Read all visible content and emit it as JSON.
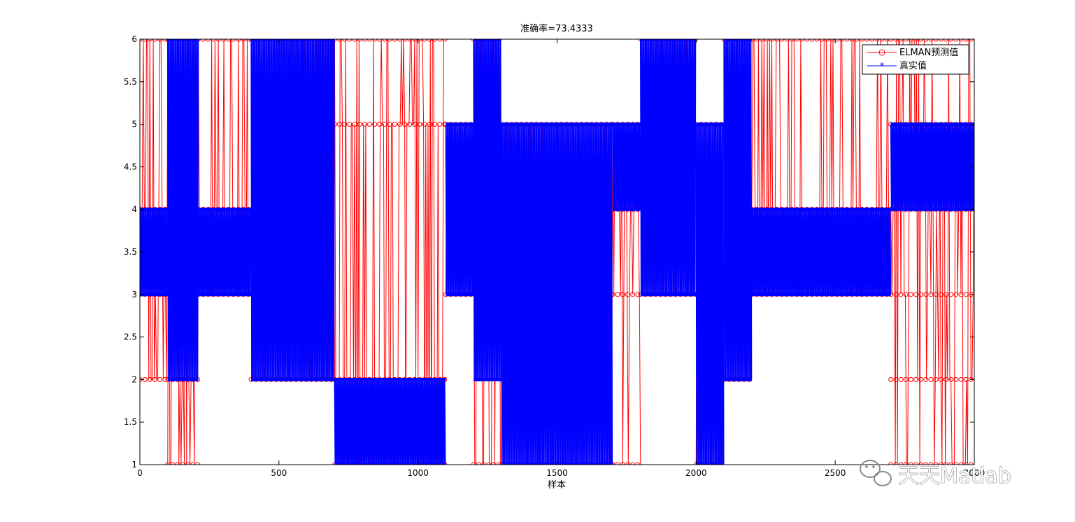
{
  "chart_data": {
    "type": "line",
    "title": "准确率=73.4333",
    "xlabel": "样本",
    "ylabel": "",
    "xlim": [
      0,
      3000
    ],
    "ylim": [
      1,
      6
    ],
    "x_ticks": [
      "0",
      "500",
      "1000",
      "1500",
      "2000",
      "2500",
      "3000"
    ],
    "y_ticks": [
      "1",
      "1.5",
      "2",
      "2.5",
      "3",
      "3.5",
      "4",
      "4.5",
      "5",
      "5.5",
      "6"
    ],
    "grid": false,
    "legend_position": "top-right",
    "series": [
      {
        "name": "ELMAN预测值",
        "color": "#ff0000",
        "marker": "circle",
        "segments": [
          {
            "x": [
              0,
              100
            ],
            "levels": [
              2,
              3,
              4,
              6
            ]
          },
          {
            "x": [
              100,
              210
            ],
            "levels": [
              1,
              2,
              6
            ]
          },
          {
            "x": [
              210,
              400
            ],
            "levels": [
              3,
              4,
              6
            ]
          },
          {
            "x": [
              400,
              700
            ],
            "levels": [
              2,
              6
            ]
          },
          {
            "x": [
              700,
              1100
            ],
            "levels": [
              1,
              2,
              5,
              6
            ]
          },
          {
            "x": [
              1100,
              1200
            ],
            "levels": [
              3,
              5
            ]
          },
          {
            "x": [
              1200,
              1300
            ],
            "levels": [
              1,
              4,
              6
            ]
          },
          {
            "x": [
              1300,
              1700
            ],
            "levels": [
              1,
              3,
              4,
              5
            ]
          },
          {
            "x": [
              1700,
              1800
            ],
            "levels": [
              1,
              3,
              4,
              5
            ]
          },
          {
            "x": [
              1800,
              2000
            ],
            "levels": [
              3,
              6
            ]
          },
          {
            "x": [
              2000,
              2100
            ],
            "levels": [
              1,
              5
            ]
          },
          {
            "x": [
              2100,
              2200
            ],
            "levels": [
              2,
              4,
              6
            ]
          },
          {
            "x": [
              2200,
              2700
            ],
            "levels": [
              3,
              4,
              6
            ]
          },
          {
            "x": [
              2700,
              3000
            ],
            "levels": [
              1,
              2,
              3,
              4,
              5,
              6
            ]
          }
        ]
      },
      {
        "name": "真实值",
        "color": "#0000ff",
        "marker": "star",
        "segments": [
          {
            "x": [
              0,
              100
            ],
            "levels": [
              3,
              4
            ]
          },
          {
            "x": [
              100,
              210
            ],
            "levels": [
              2,
              6
            ]
          },
          {
            "x": [
              210,
              400
            ],
            "levels": [
              3,
              4
            ]
          },
          {
            "x": [
              400,
              700
            ],
            "levels": [
              2,
              6
            ]
          },
          {
            "x": [
              700,
              1100
            ],
            "levels": [
              1,
              2
            ]
          },
          {
            "x": [
              1100,
              1200
            ],
            "levels": [
              3,
              5
            ]
          },
          {
            "x": [
              1200,
              1300
            ],
            "levels": [
              2,
              6
            ]
          },
          {
            "x": [
              1300,
              1700
            ],
            "levels": [
              1,
              5
            ]
          },
          {
            "x": [
              1700,
              1800
            ],
            "levels": [
              4,
              5
            ]
          },
          {
            "x": [
              1800,
              2000
            ],
            "levels": [
              3,
              6
            ]
          },
          {
            "x": [
              2000,
              2100
            ],
            "levels": [
              1,
              5
            ]
          },
          {
            "x": [
              2100,
              2200
            ],
            "levels": [
              2,
              6
            ]
          },
          {
            "x": [
              2200,
              2700
            ],
            "levels": [
              3,
              4
            ]
          },
          {
            "x": [
              2700,
              3000
            ],
            "levels": [
              4,
              5
            ]
          }
        ]
      }
    ]
  },
  "watermark": {
    "text": "天天Matlab",
    "icon": "wechat-icon"
  }
}
